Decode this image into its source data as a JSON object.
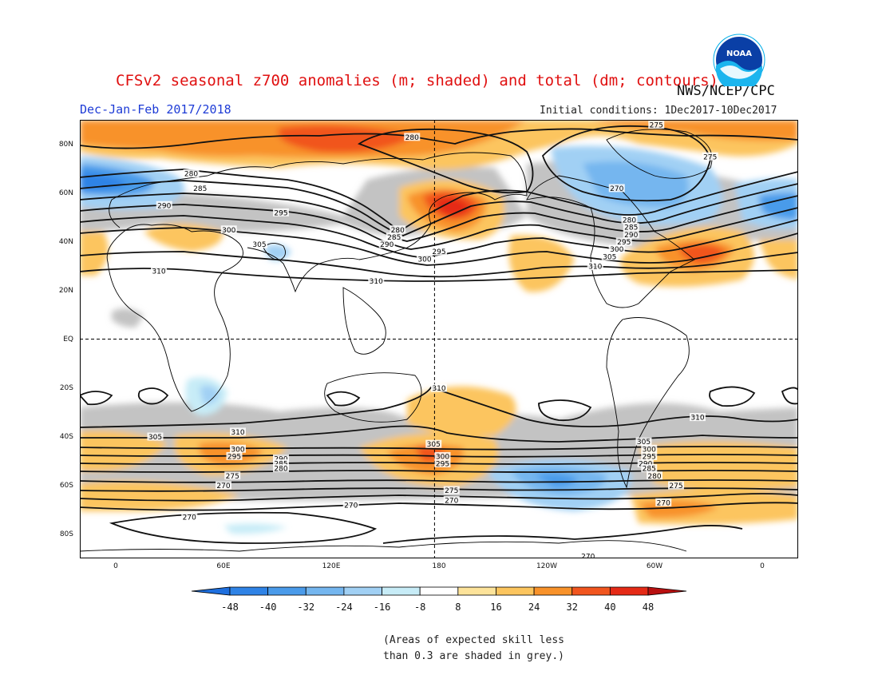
{
  "header": {
    "title": "CFSv2 seasonal z700 anomalies (m; shaded) and total (dm; contours)",
    "agency": "NWS/NCEP/CPC",
    "period": "Dec-Jan-Feb 2017/2018",
    "initial_conditions": "Initial conditions: 1Dec2017-10Dec2017",
    "logo_text": "NOAA"
  },
  "map": {
    "projection": "cylindrical equidistant",
    "lat_labels": [
      "80N",
      "60N",
      "40N",
      "20N",
      "EQ",
      "20S",
      "40S",
      "60S",
      "80S"
    ],
    "lat_values": [
      80,
      60,
      40,
      20,
      0,
      -20,
      -40,
      -60,
      -80
    ],
    "lon_labels": [
      "0",
      "60E",
      "120E",
      "180",
      "120W",
      "60W",
      "0"
    ],
    "lon_values": [
      0,
      60,
      120,
      180,
      240,
      300,
      360
    ],
    "lon_range": [
      -20,
      380
    ],
    "lat_range": [
      -90,
      90
    ],
    "reference_lines": [
      "EQ",
      "180"
    ],
    "contour_labels": [
      {
        "text": "280",
        "lon": 165,
        "lat": 83
      },
      {
        "text": "275",
        "lon": 301,
        "lat": 88
      },
      {
        "text": "275",
        "lon": 331,
        "lat": 75
      },
      {
        "text": "280",
        "lon": 42,
        "lat": 68
      },
      {
        "text": "285",
        "lon": 47,
        "lat": 62
      },
      {
        "text": "290",
        "lon": 27,
        "lat": 55
      },
      {
        "text": "295",
        "lon": 92,
        "lat": 52
      },
      {
        "text": "300",
        "lon": 63,
        "lat": 45
      },
      {
        "text": "305",
        "lon": 80,
        "lat": 39
      },
      {
        "text": "310",
        "lon": 24,
        "lat": 28
      },
      {
        "text": "310",
        "lon": 145,
        "lat": 24
      },
      {
        "text": "280",
        "lon": 157,
        "lat": 45
      },
      {
        "text": "285",
        "lon": 155,
        "lat": 42
      },
      {
        "text": "290",
        "lon": 151,
        "lat": 39
      },
      {
        "text": "300",
        "lon": 172,
        "lat": 33
      },
      {
        "text": "295",
        "lon": 180,
        "lat": 36
      },
      {
        "text": "270",
        "lon": 279,
        "lat": 62
      },
      {
        "text": "280",
        "lon": 286,
        "lat": 49
      },
      {
        "text": "285",
        "lon": 287,
        "lat": 46
      },
      {
        "text": "290",
        "lon": 287,
        "lat": 43
      },
      {
        "text": "295",
        "lon": 283,
        "lat": 40
      },
      {
        "text": "300",
        "lon": 279,
        "lat": 37
      },
      {
        "text": "305",
        "lon": 275,
        "lat": 34
      },
      {
        "text": "310",
        "lon": 267,
        "lat": 30
      },
      {
        "text": "310",
        "lon": 180,
        "lat": -20
      },
      {
        "text": "310",
        "lon": 68,
        "lat": -38
      },
      {
        "text": "310",
        "lon": 324,
        "lat": -32
      },
      {
        "text": "305",
        "lon": 22,
        "lat": -40
      },
      {
        "text": "305",
        "lon": 177,
        "lat": -43
      },
      {
        "text": "305",
        "lon": 294,
        "lat": -42
      },
      {
        "text": "300",
        "lon": 68,
        "lat": -45
      },
      {
        "text": "295",
        "lon": 66,
        "lat": -48
      },
      {
        "text": "290",
        "lon": 92,
        "lat": -49
      },
      {
        "text": "285",
        "lon": 92,
        "lat": -51
      },
      {
        "text": "280",
        "lon": 92,
        "lat": -53
      },
      {
        "text": "300",
        "lon": 182,
        "lat": -48
      },
      {
        "text": "295",
        "lon": 182,
        "lat": -51
      },
      {
        "text": "300",
        "lon": 297,
        "lat": -45
      },
      {
        "text": "295",
        "lon": 297,
        "lat": -48
      },
      {
        "text": "290",
        "lon": 295,
        "lat": -51
      },
      {
        "text": "285",
        "lon": 297,
        "lat": -53
      },
      {
        "text": "280",
        "lon": 300,
        "lat": -56
      },
      {
        "text": "275",
        "lon": 65,
        "lat": -56
      },
      {
        "text": "270",
        "lon": 60,
        "lat": -60
      },
      {
        "text": "275",
        "lon": 187,
        "lat": -62
      },
      {
        "text": "270",
        "lon": 187,
        "lat": -66
      },
      {
        "text": "270",
        "lon": 131,
        "lat": -68
      },
      {
        "text": "275",
        "lon": 312,
        "lat": -60
      },
      {
        "text": "270",
        "lon": 305,
        "lat": -67
      },
      {
        "text": "270",
        "lon": 41,
        "lat": -73
      },
      {
        "text": "270",
        "lon": 263,
        "lat": -89
      }
    ]
  },
  "colorbar": {
    "tick_labels": [
      "-48",
      "-40",
      "-32",
      "-24",
      "-16",
      "-8",
      "8",
      "16",
      "24",
      "32",
      "40",
      "48"
    ],
    "colors": [
      "#1e6fde",
      "#2f83e6",
      "#4a9bea",
      "#74b6ef",
      "#a1d0f4",
      "#c7ecf7",
      "#ffffff",
      "#fde39a",
      "#fcc55e",
      "#f8922a",
      "#f1551e",
      "#e52a16",
      "#b81010"
    ]
  },
  "footnote": {
    "line1": "(Areas of expected skill less",
    "line2": "than 0.3 are shaded in grey.)"
  }
}
